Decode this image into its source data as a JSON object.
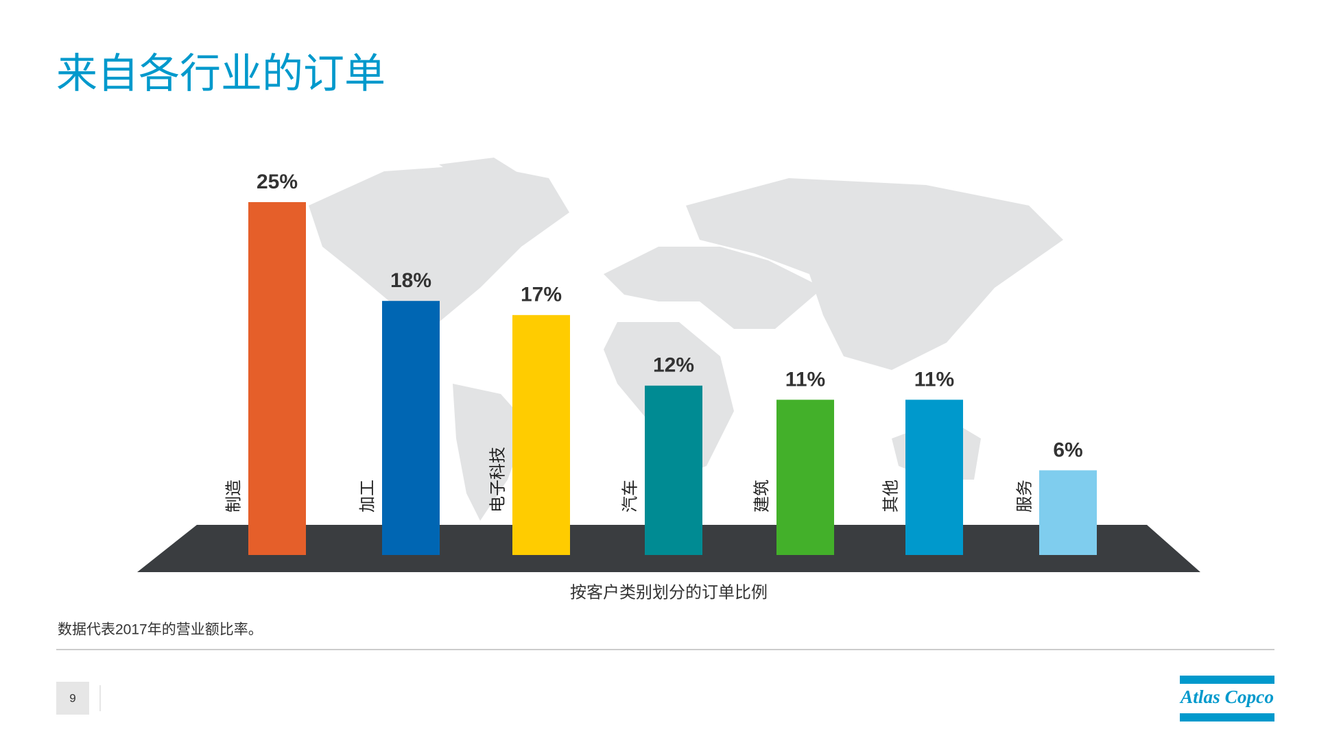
{
  "header": {
    "title": "来自各行业的订单"
  },
  "chart_data": {
    "type": "bar",
    "categories": [
      "制造",
      "加工",
      "电子科技",
      "汽车",
      "建筑",
      "其他",
      "服务"
    ],
    "values": [
      25,
      18,
      17,
      12,
      11,
      11,
      6
    ],
    "value_labels": [
      "25%",
      "18%",
      "17%",
      "12%",
      "11%",
      "11%",
      "6%"
    ],
    "colors": [
      "#e55f2a",
      "#0066b3",
      "#ffcc00",
      "#008b93",
      "#43b02a",
      "#0099cc",
      "#7fcdee"
    ],
    "x_label": "按客户类别划分的订单比例"
  },
  "footnote": "数据代表2017年的营业额比率。",
  "page_number": 9,
  "logo": "Atlas Copco"
}
